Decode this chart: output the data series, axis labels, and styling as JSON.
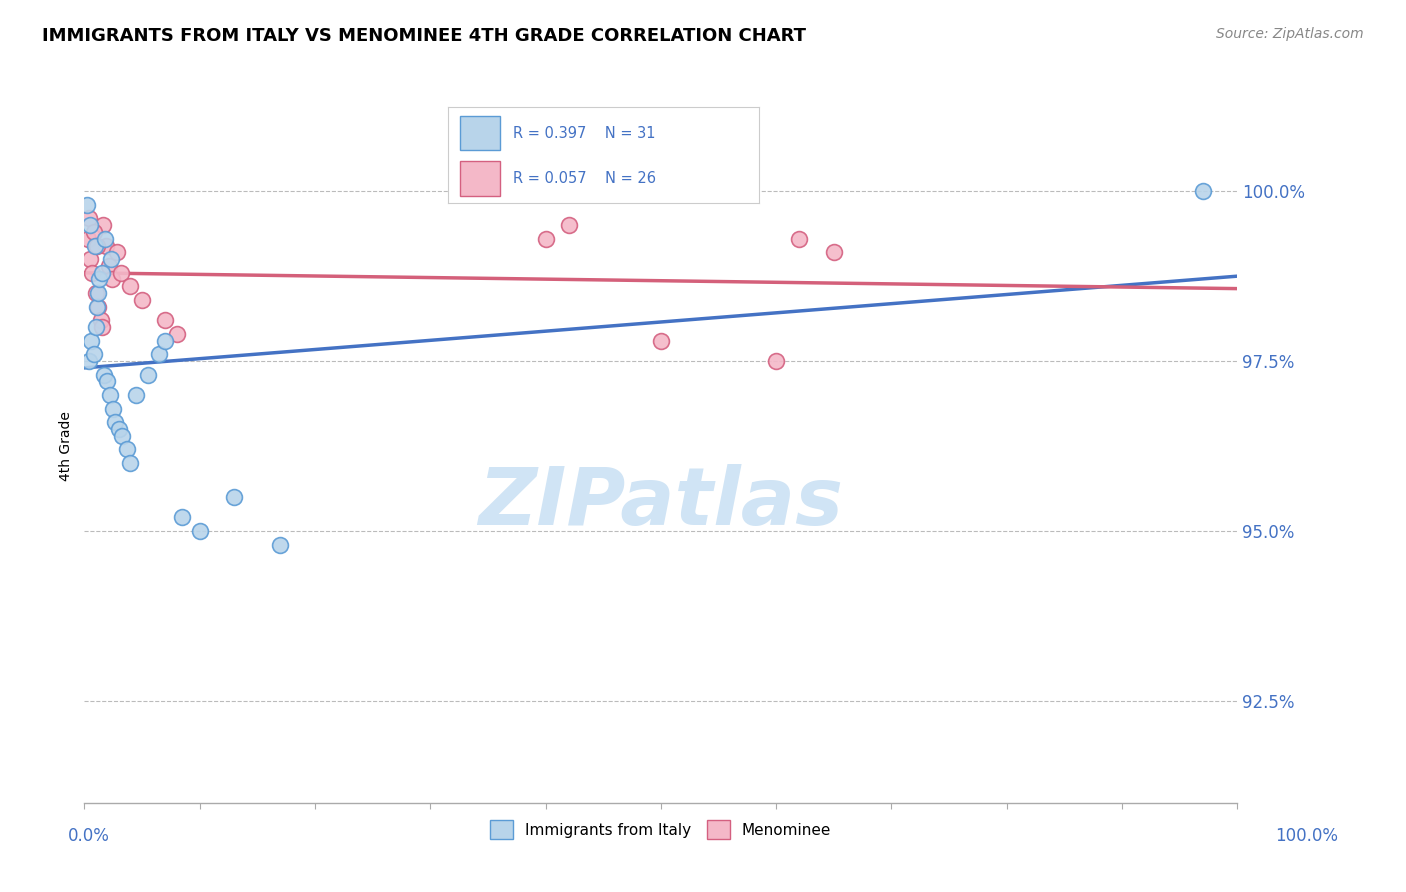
{
  "title": "IMMIGRANTS FROM ITALY VS MENOMINEE 4TH GRADE CORRELATION CHART",
  "source": "Source: ZipAtlas.com",
  "ylabel": "4th Grade",
  "legend_blue_label": "Immigrants from Italy",
  "legend_pink_label": "Menominee",
  "R_blue": 0.397,
  "N_blue": 31,
  "R_pink": 0.057,
  "N_pink": 26,
  "xlim": [
    0.0,
    100.0
  ],
  "ylim": [
    91.0,
    101.5
  ],
  "yticks": [
    92.5,
    95.0,
    97.5,
    100.0
  ],
  "ytick_labels": [
    "92.5%",
    "95.0%",
    "97.5%",
    "100.0%"
  ],
  "blue_color": "#b8d4ea",
  "blue_edge": "#5b9bd5",
  "pink_color": "#f4b8c8",
  "pink_edge": "#d46080",
  "trend_blue": "#4472c4",
  "trend_pink": "#d4607a",
  "blue_x": [
    0.4,
    0.6,
    0.8,
    1.0,
    1.1,
    1.2,
    1.3,
    1.5,
    1.7,
    2.0,
    2.2,
    2.5,
    2.7,
    3.0,
    3.3,
    3.7,
    4.0,
    4.5,
    5.5,
    6.5,
    7.0,
    8.5,
    10.0,
    13.0,
    17.0,
    0.2,
    0.5,
    0.9,
    1.8,
    2.3,
    97.0
  ],
  "blue_y": [
    97.5,
    97.8,
    97.6,
    98.0,
    98.3,
    98.5,
    98.7,
    98.8,
    97.3,
    97.2,
    97.0,
    96.8,
    96.6,
    96.5,
    96.4,
    96.2,
    96.0,
    97.0,
    97.3,
    97.6,
    97.8,
    95.2,
    95.0,
    95.5,
    94.8,
    99.8,
    99.5,
    99.2,
    99.3,
    99.0,
    100.0
  ],
  "pink_x": [
    0.3,
    0.5,
    0.7,
    1.0,
    1.2,
    1.4,
    1.6,
    1.9,
    2.1,
    2.4,
    2.8,
    3.2,
    4.0,
    5.0,
    7.0,
    8.0,
    40.0,
    42.0,
    50.0,
    60.0,
    62.0,
    65.0,
    0.4,
    0.8,
    1.1,
    1.5
  ],
  "pink_y": [
    99.3,
    99.0,
    98.8,
    98.5,
    98.3,
    98.1,
    99.5,
    99.2,
    98.9,
    98.7,
    99.1,
    98.8,
    98.6,
    98.4,
    98.1,
    97.9,
    99.3,
    99.5,
    97.8,
    97.5,
    99.3,
    99.1,
    99.6,
    99.4,
    99.2,
    98.0
  ],
  "watermark_text": "ZIPatlas",
  "watermark_color": "#d0e4f5"
}
